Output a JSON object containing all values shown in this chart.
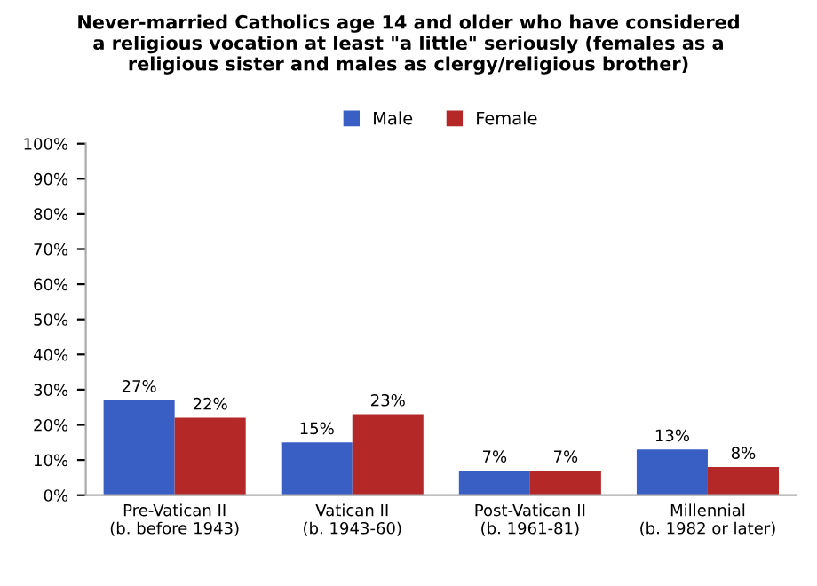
{
  "chart_data": {
    "type": "bar",
    "title": "Never-married Catholics age 14 and older who have considered\na religious vocation at least \"a little\" seriously (females as a\nreligious sister and males as clergy/religious brother)",
    "categories": [
      "Pre-Vatican II\n(b. before 1943)",
      "Vatican II\n(b. 1943-60)",
      "Post-Vatican II\n(b. 1961-81)",
      "Millennial\n(b. 1982 or later)"
    ],
    "series": [
      {
        "name": "Male",
        "color": "#3a5fc4",
        "values": [
          27,
          15,
          7,
          13
        ],
        "value_labels": [
          "27%",
          "15%",
          "7%",
          "13%"
        ]
      },
      {
        "name": "Female",
        "color": "#b52828",
        "values": [
          22,
          23,
          7,
          8
        ],
        "value_labels": [
          "22%",
          "23%",
          "7%",
          "8%"
        ]
      }
    ],
    "ylim": [
      0,
      100
    ],
    "yticks": [
      {
        "value": 0,
        "label": "0%"
      },
      {
        "value": 10,
        "label": "10%"
      },
      {
        "value": 20,
        "label": "20%"
      },
      {
        "value": 30,
        "label": "30%"
      },
      {
        "value": 40,
        "label": "40%"
      },
      {
        "value": 50,
        "label": "50%"
      },
      {
        "value": 60,
        "label": "60%"
      },
      {
        "value": 70,
        "label": "70%"
      },
      {
        "value": 80,
        "label": "80%"
      },
      {
        "value": 90,
        "label": "90%"
      },
      {
        "value": 100,
        "label": "100%"
      }
    ],
    "legend": "top",
    "grid": false
  }
}
